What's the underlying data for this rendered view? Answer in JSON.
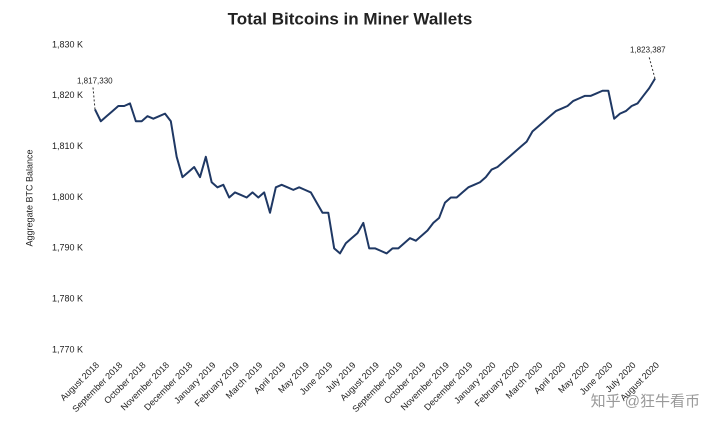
{
  "chart_data": {
    "type": "line",
    "title": "Total Bitcoins in Miner Wallets",
    "y_label": "Aggregate BTC Balance",
    "watermark": "知乎 @狂牛看币",
    "categories": [
      "August 2018",
      null,
      null,
      null,
      "September 2018",
      null,
      null,
      null,
      "October 2018",
      null,
      null,
      null,
      "November 2018",
      null,
      null,
      null,
      "December 2018",
      null,
      null,
      null,
      "January 2019",
      null,
      null,
      null,
      "February 2019",
      null,
      null,
      null,
      "March 2019",
      null,
      null,
      null,
      "April 2019",
      null,
      null,
      null,
      "May 2019",
      null,
      null,
      null,
      "June 2019",
      null,
      null,
      null,
      "July 2019",
      null,
      null,
      null,
      "August 2019",
      null,
      null,
      null,
      "September 2019",
      null,
      null,
      null,
      "October 2019",
      null,
      null,
      null,
      "November 2019",
      null,
      null,
      null,
      "December 2019",
      null,
      null,
      null,
      "January 2020",
      null,
      null,
      null,
      "February 2020",
      null,
      null,
      null,
      "March 2020",
      null,
      null,
      null,
      "April 2020",
      null,
      null,
      null,
      "May 2020",
      null,
      null,
      null,
      "June 2020",
      null,
      null,
      null,
      "July 2020",
      null,
      null,
      null,
      "August 2020"
    ],
    "series": [
      {
        "name": "Total Bitcoins in Miner Wallets",
        "color": "#1f3864",
        "values": [
          1817.33,
          1815,
          1816,
          1817,
          1818,
          1818,
          1818.5,
          1815,
          1815,
          1816,
          1815.5,
          1816,
          1816.5,
          1815,
          1808,
          1804,
          1805,
          1806,
          1804,
          1808,
          1803,
          1802,
          1802.5,
          1800,
          1801,
          1800.5,
          1800,
          1801,
          1800,
          1801,
          1797,
          1802,
          1802.5,
          1802,
          1801.5,
          1802,
          1801.5,
          1801,
          1799,
          1797,
          1797,
          1790,
          1789,
          1791,
          1792,
          1793,
          1795,
          1790,
          1790,
          1789.5,
          1789,
          1790,
          1790,
          1791,
          1792,
          1791.5,
          1792.5,
          1793.5,
          1795,
          1796,
          1799,
          1800,
          1800,
          1801,
          1802,
          1802.5,
          1803,
          1804,
          1805.5,
          1806,
          1807,
          1808,
          1809,
          1810,
          1811,
          1813,
          1814,
          1815,
          1816,
          1817,
          1817.5,
          1818,
          1819,
          1819.5,
          1820,
          1820,
          1820.5,
          1821,
          1821,
          1815.5,
          1816.5,
          1817,
          1818,
          1818.5,
          1820,
          1821.5,
          1823.387
        ]
      }
    ],
    "annotations": [
      {
        "label": "1,817,330",
        "value": 1817.33
      },
      {
        "label": "1,823,387",
        "value": 1823.387
      }
    ],
    "ylim": [
      1770,
      1830
    ],
    "yticks": [
      {
        "value": 1770,
        "label": "1,770 K"
      },
      {
        "value": 1780,
        "label": "1,780 K"
      },
      {
        "value": 1790,
        "label": "1,790 K"
      },
      {
        "value": 1800,
        "label": "1,800 K"
      },
      {
        "value": 1810,
        "label": "1,810 K"
      },
      {
        "value": 1820,
        "label": "1,820 K"
      },
      {
        "value": 1830,
        "label": "1,830 K"
      }
    ],
    "grid": false
  }
}
